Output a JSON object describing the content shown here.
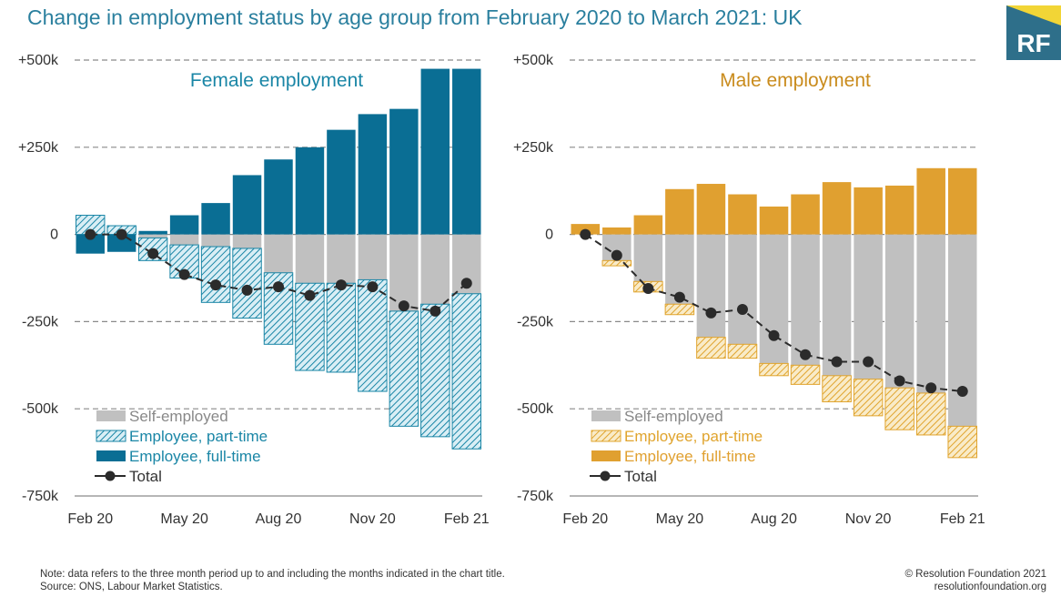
{
  "title": "Change in employment status by age group from February 2020 to March 2021: UK",
  "logo": {
    "text": "RF",
    "bg": "#2e6f8a",
    "accent": "#f2d536"
  },
  "footer": {
    "note": "Note: data refers to the three month period up to and including the months indicated in the chart title.",
    "source": "Source: ONS, Labour Market Statistics.",
    "copyright": "© Resolution Foundation 2021",
    "site": "resolutionfoundation.org"
  },
  "chart_data": [
    {
      "type": "bar",
      "stacked": true,
      "title": "Female employment",
      "title_color": "#1a86a6",
      "x": [
        "Feb 20",
        "Mar 20",
        "Apr 20",
        "May 20",
        "Jun 20",
        "Jul 20",
        "Aug 20",
        "Sep 20",
        "Oct 20",
        "Nov 20",
        "Dec 20",
        "Jan 21",
        "Feb 21"
      ],
      "x_tick_labels": [
        "Feb 20",
        "May 20",
        "Aug 20",
        "Nov 20",
        "Feb 21"
      ],
      "y_ticks": [
        "+500k",
        "+250k",
        "0",
        "-250k",
        "-500k",
        "-750k"
      ],
      "ylim": [
        -750,
        500
      ],
      "grid": "dashed-horizontal",
      "legend_position": "bottom-left",
      "legend": [
        "Self-employed",
        "Employee, part-time",
        "Employee, full-time",
        "Total"
      ],
      "series": [
        {
          "name": "Self-employed",
          "color": "#c0c0c0",
          "pattern": "solid",
          "values": [
            0,
            0,
            -10,
            -30,
            -35,
            -40,
            -110,
            -140,
            -140,
            -130,
            -220,
            -200,
            -170
          ]
        },
        {
          "name": "Employee, part-time",
          "color": "#1a86a6",
          "pattern": "hatched",
          "values": [
            55,
            25,
            -65,
            -95,
            -160,
            -200,
            -205,
            -250,
            -255,
            -320,
            -330,
            -380,
            -445
          ]
        },
        {
          "name": "Employee, full-time",
          "color": "#0a6e94",
          "pattern": "solid",
          "values": [
            -55,
            -50,
            10,
            55,
            90,
            170,
            215,
            250,
            300,
            345,
            360,
            475,
            475
          ]
        },
        {
          "name": "Total",
          "type": "line",
          "color": "#2b2b2b",
          "values": [
            0,
            0,
            -55,
            -115,
            -145,
            -160,
            -150,
            -175,
            -145,
            -150,
            -205,
            -220,
            -140
          ]
        }
      ]
    },
    {
      "type": "bar",
      "stacked": true,
      "title": "Male employment",
      "title_color": "#c98b1c",
      "x": [
        "Feb 20",
        "Mar 20",
        "Apr 20",
        "May 20",
        "Jun 20",
        "Jul 20",
        "Aug 20",
        "Sep 20",
        "Oct 20",
        "Nov 20",
        "Dec 20",
        "Jan 21",
        "Feb 21"
      ],
      "x_tick_labels": [
        "Feb 20",
        "May 20",
        "Aug 20",
        "Nov 20",
        "Feb 21"
      ],
      "y_ticks": [
        "+500k",
        "+250k",
        "0",
        "-250k",
        "-500k",
        "-750k"
      ],
      "ylim": [
        -750,
        500
      ],
      "grid": "dashed-horizontal",
      "legend_position": "bottom-left",
      "legend": [
        "Self-employed",
        "Employee, part-time",
        "Employee, full-time",
        "Total"
      ],
      "series": [
        {
          "name": "Self-employed",
          "color": "#c0c0c0",
          "pattern": "solid",
          "values": [
            0,
            -75,
            -135,
            -200,
            -295,
            -315,
            -370,
            -375,
            -405,
            -415,
            -440,
            -455,
            -550
          ]
        },
        {
          "name": "Employee, part-time",
          "color": "#e0a42e",
          "pattern": "hatched",
          "values": [
            0,
            -15,
            -30,
            -30,
            -60,
            -40,
            -35,
            -55,
            -75,
            -105,
            -120,
            -120,
            -90
          ]
        },
        {
          "name": "Employee, full-time",
          "color": "#e0a030",
          "pattern": "solid",
          "values": [
            30,
            20,
            55,
            130,
            145,
            115,
            80,
            115,
            150,
            135,
            140,
            190,
            190
          ]
        },
        {
          "name": "Total",
          "type": "line",
          "color": "#2b2b2b",
          "values": [
            0,
            -60,
            -155,
            -180,
            -225,
            -215,
            -290,
            -345,
            -365,
            -365,
            -420,
            -440,
            -450
          ]
        }
      ]
    }
  ]
}
